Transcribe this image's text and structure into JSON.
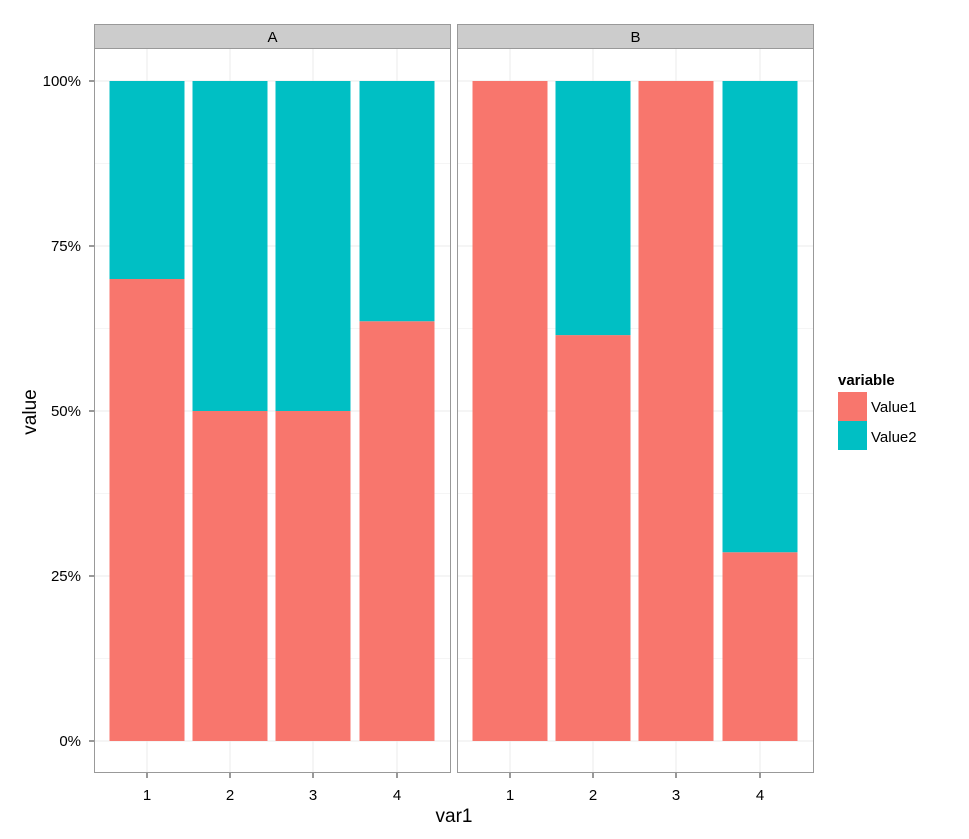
{
  "chart_data": {
    "type": "bar",
    "stacked": true,
    "position": "fill",
    "facet_by": "",
    "facets": [
      {
        "label": "A",
        "categories": [
          "1",
          "2",
          "3",
          "4"
        ],
        "series": [
          {
            "name": "Value1",
            "values": [
              0.7,
              0.5,
              0.5,
              0.636
            ]
          },
          {
            "name": "Value2",
            "values": [
              0.3,
              0.5,
              0.5,
              0.364
            ]
          }
        ]
      },
      {
        "label": "B",
        "categories": [
          "1",
          "2",
          "3",
          "4"
        ],
        "series": [
          {
            "name": "Value1",
            "values": [
              1.0,
              0.615,
              1.0,
              0.286
            ]
          },
          {
            "name": "Value2",
            "values": [
              0.0,
              0.385,
              0.0,
              0.714
            ]
          }
        ]
      }
    ],
    "xlabel": "var1",
    "ylabel": "value",
    "ylim": [
      0,
      1
    ],
    "yticks": [
      {
        "value": 0,
        "label": "0%"
      },
      {
        "value": 0.25,
        "label": "25%"
      },
      {
        "value": 0.5,
        "label": "50%"
      },
      {
        "value": 0.75,
        "label": "75%"
      },
      {
        "value": 1,
        "label": "100%"
      }
    ],
    "grid": true,
    "legend": {
      "title": "variable",
      "position": "right",
      "items": [
        {
          "name": "Value1",
          "color": "#F8766D"
        },
        {
          "name": "Value2",
          "color": "#00BFC4"
        }
      ]
    },
    "colors": {
      "Value1": "#F8766D",
      "Value2": "#00BFC4",
      "strip_bg": "#CCCCCC",
      "panel_border": "#999999",
      "grid": "#EBEBEB"
    }
  }
}
